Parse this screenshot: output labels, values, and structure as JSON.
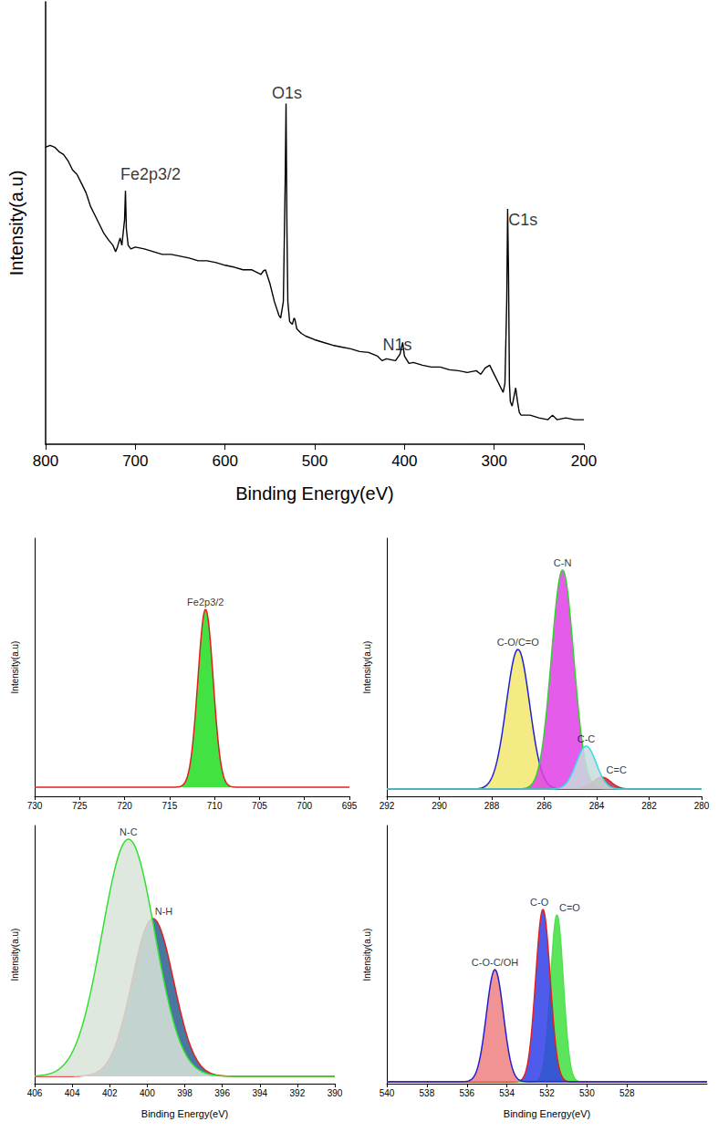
{
  "chart_data": [
    {
      "type": "line",
      "x_label": "Binding Energy(eV)",
      "y_label": "Intensity(a.u)",
      "x": [
        800,
        795,
        790,
        785,
        780,
        775,
        770,
        765,
        760,
        755,
        750,
        745,
        740,
        735,
        730,
        725,
        722,
        720,
        717,
        715,
        712,
        711,
        710,
        708,
        705,
        700,
        690,
        680,
        670,
        660,
        650,
        640,
        630,
        620,
        610,
        600,
        590,
        580,
        570,
        560,
        557,
        555,
        550,
        545,
        540,
        538,
        535,
        533,
        532,
        531,
        530,
        528,
        525,
        523,
        522,
        520,
        515,
        510,
        500,
        490,
        480,
        470,
        460,
        450,
        440,
        430,
        425,
        420,
        410,
        405,
        402,
        400,
        395,
        390,
        380,
        370,
        360,
        350,
        340,
        330,
        320,
        315,
        310,
        305,
        300,
        295,
        290,
        288,
        286,
        285,
        284,
        283,
        282,
        280,
        278,
        276,
        274,
        272,
        270,
        260,
        250,
        240,
        235,
        230,
        220,
        210,
        200
      ],
      "values": [
        327,
        329,
        327,
        322,
        319,
        312,
        302,
        297,
        287,
        277,
        262,
        252,
        242,
        232,
        225,
        219,
        212,
        217,
        227,
        219,
        247,
        279,
        237,
        219,
        215,
        217,
        215,
        212,
        209,
        209,
        207,
        205,
        202,
        202,
        200,
        197,
        195,
        192,
        192,
        187,
        191,
        192,
        177,
        157,
        142,
        139,
        157,
        287,
        375,
        237,
        157,
        135,
        132,
        139,
        137,
        127,
        122,
        119,
        115,
        112,
        109,
        107,
        105,
        102,
        101,
        97,
        92,
        94,
        92,
        99,
        112,
        97,
        89,
        90,
        87,
        85,
        85,
        82,
        81,
        79,
        81,
        77,
        84,
        87,
        77,
        67,
        57,
        67,
        157,
        259,
        187,
        67,
        47,
        42,
        52,
        62,
        47,
        35,
        32,
        32,
        29,
        27,
        32,
        27,
        29,
        27,
        27
      ],
      "color": "#000000",
      "xlim": [
        800,
        200
      ],
      "xticks": [
        800,
        700,
        600,
        500,
        400,
        300,
        200
      ],
      "ylim": [
        0,
        487
      ],
      "tick_labels": "x",
      "grid": false,
      "annotations": [
        {
          "text": "Fe2p3/2",
          "x": 683,
          "y": 297
        },
        {
          "text": "O1s",
          "x": 531,
          "y": 387
        },
        {
          "text": "N1s",
          "x": 408,
          "y": 109
        },
        {
          "text": "C1s",
          "x": 268,
          "y": 247
        }
      ]
    },
    {
      "type": "peaks",
      "y_label": "Intensity(a.u)",
      "xlim": [
        730,
        695
      ],
      "xticks": [
        730,
        725,
        720,
        715,
        710,
        705,
        700,
        695
      ],
      "ylim": [
        -10,
        273
      ],
      "tick_labels": "x",
      "grid": false,
      "series": [
        {
          "name": "Fe2p3/2",
          "color": "#22dd22",
          "center": 711.0,
          "height": 195,
          "fwhm": 2.0
        }
      ]
    },
    {
      "type": "peaks",
      "y_label": "Intensity(a.u)",
      "xlim": [
        292,
        280
      ],
      "xticks": [
        292,
        290,
        288,
        286,
        284,
        282,
        280
      ],
      "ylim": [
        -8,
        275
      ],
      "tick_labels": "x",
      "grid": false,
      "series": [
        {
          "name": "C-O/C=O",
          "color": "#f2e870",
          "center": 287.0,
          "height": 153,
          "fwhm": 1.05
        },
        {
          "name": "C-N",
          "color": "#e040e8",
          "center": 285.3,
          "height": 240,
          "fwhm": 1.0
        },
        {
          "name": "C=C",
          "color": "#b03050",
          "center": 283.8,
          "height": 13,
          "fwhm": 0.8
        },
        {
          "name": "C-C",
          "color": "#c8dcdc",
          "center": 284.4,
          "height": 47,
          "fwhm": 0.9
        }
      ]
    },
    {
      "type": "peaks",
      "x_label": "Binding Energy(eV)",
      "y_label": "Intensity(a.u)",
      "xlim": [
        406,
        390
      ],
      "xticks": [
        406,
        404,
        402,
        400,
        398,
        396,
        394,
        392,
        390
      ],
      "ylim": [
        -8,
        275
      ],
      "tick_labels": "x",
      "grid": false,
      "series": [
        {
          "name": "N-H",
          "color": "#2a5f8f",
          "center": 399.7,
          "height": 173,
          "fwhm": 2.6
        },
        {
          "name": "N-C",
          "color": "#d8e4d8",
          "center": 401.0,
          "height": 260,
          "fwhm": 3.3
        }
      ]
    },
    {
      "type": "peaks",
      "x_label": "Binding Energy(eV)",
      "y_label": "Intensity(a.u)",
      "xlim": [
        540,
        524
      ],
      "xticks": [
        540,
        538,
        536,
        534,
        532,
        530,
        528
      ],
      "ylim": [
        -2,
        281
      ],
      "tick_labels": "x",
      "grid": false,
      "series": [
        {
          "name": "C=O",
          "color": "#40e040",
          "center": 531.5,
          "height": 183,
          "fwhm": 0.75
        },
        {
          "name": "C-O",
          "color": "#3040e8",
          "center": 532.2,
          "height": 189,
          "fwhm": 0.85
        },
        {
          "name": "C-O-C/OH",
          "color": "#f08080",
          "center": 534.6,
          "height": 123,
          "fwhm": 1.0
        }
      ]
    }
  ]
}
